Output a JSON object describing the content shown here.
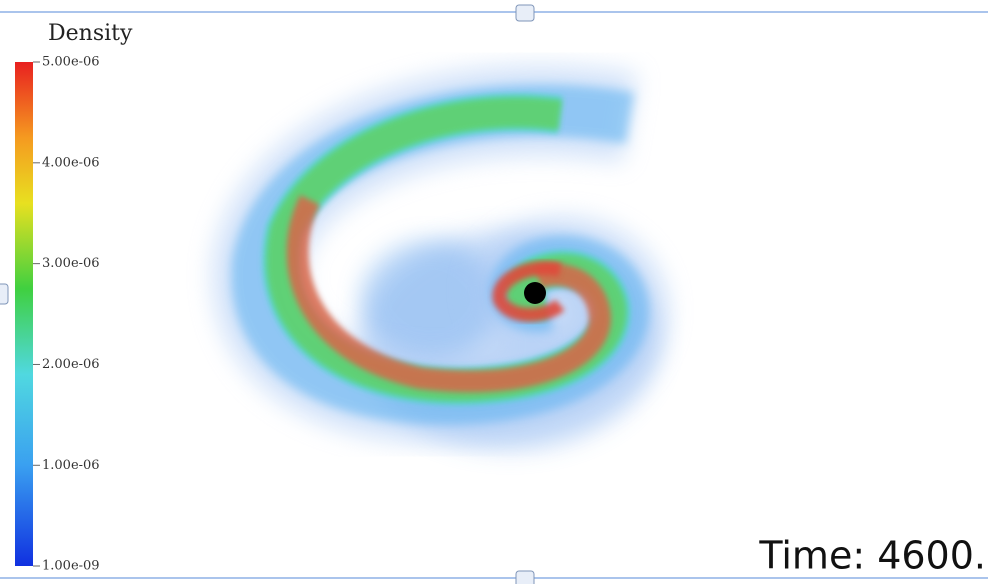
{
  "colorbar": {
    "title": "Density",
    "range": [
      1e-09,
      5e-06
    ],
    "ticks": [
      {
        "value": 5e-06,
        "label": "5.00e-06"
      },
      {
        "value": 4e-06,
        "label": "4.00e-06"
      },
      {
        "value": 3e-06,
        "label": "3.00e-06"
      },
      {
        "value": 2e-06,
        "label": "2.00e-06"
      },
      {
        "value": 1e-06,
        "label": "1.00e-06"
      },
      {
        "value": 1e-09,
        "label": "1.00e-09"
      }
    ]
  },
  "time_label": "Time: 4600."
}
